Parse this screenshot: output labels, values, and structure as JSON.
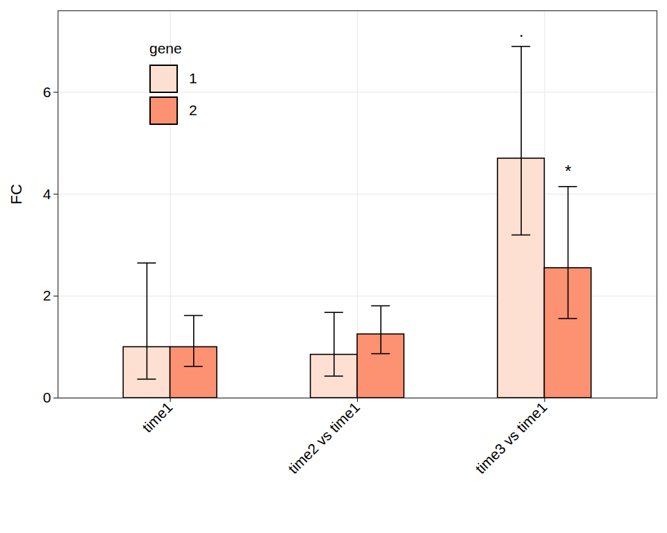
{
  "chart_data": {
    "type": "bar",
    "categories": [
      "time1",
      "time2 vs time1",
      "time3 vs time1"
    ],
    "y_label": "FC",
    "legend_title": "gene",
    "legend": "top-left",
    "grid": true,
    "ylim": [
      0,
      7.6
    ],
    "yticks": [
      0,
      2,
      4,
      6
    ],
    "series": [
      {
        "name": "1",
        "color": "#fee0d2",
        "values": [
          1.0,
          0.85,
          4.7
        ],
        "error_low": [
          0.37,
          0.43,
          3.2
        ],
        "error_high": [
          2.65,
          1.68,
          6.9
        ],
        "significance": [
          null,
          null,
          "."
        ]
      },
      {
        "name": "2",
        "color": "#fc9272",
        "values": [
          1.0,
          1.25,
          2.55
        ],
        "error_low": [
          0.62,
          0.87,
          1.56
        ],
        "error_high": [
          1.62,
          1.81,
          4.15
        ],
        "significance": [
          null,
          null,
          "*"
        ]
      }
    ]
  }
}
